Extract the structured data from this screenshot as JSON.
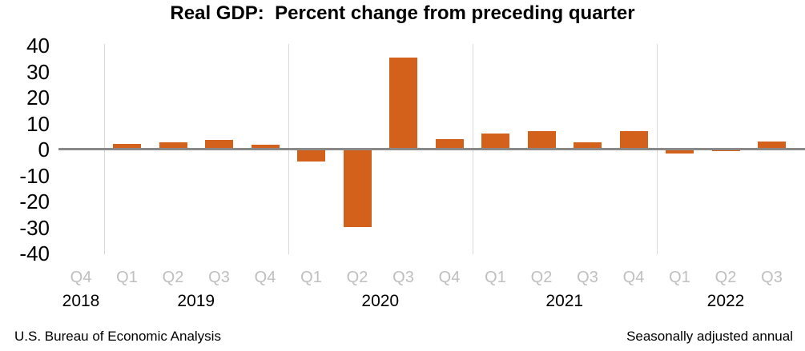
{
  "title": "Real GDP:  Percent change from preceding quarter",
  "footer": {
    "left": "U.S. Bureau of Economic Analysis",
    "right": "Seasonally adjusted annual"
  },
  "colors": {
    "bar": "#D3611B",
    "zero_axis": "#898989",
    "year_gridline": "#D9D9D9",
    "quarter_label": "#BFBFBF",
    "text": "#000000",
    "background": "#FFFFFF"
  },
  "chart_data": {
    "type": "bar",
    "title": "Real GDP:  Percent change from preceding quarter",
    "xlabel": "",
    "ylabel": "",
    "units": "percent change at seasonally adjusted annual rate",
    "ylim": [
      -40,
      40
    ],
    "y_ticks": [
      40,
      30,
      20,
      10,
      0,
      -10,
      -20,
      -30,
      -40
    ],
    "grid": "vertical-year-separators-only",
    "legend_position": "none",
    "year_separators_after_index": [
      0,
      4,
      8,
      12
    ],
    "points": [
      {
        "year": "2018",
        "quarter": "Q4",
        "value": 0.7
      },
      {
        "year": "2019",
        "quarter": "Q1",
        "value": 2.2
      },
      {
        "year": "2019",
        "quarter": "Q2",
        "value": 2.7
      },
      {
        "year": "2019",
        "quarter": "Q3",
        "value": 3.6
      },
      {
        "year": "2019",
        "quarter": "Q4",
        "value": 1.8
      },
      {
        "year": "2020",
        "quarter": "Q1",
        "value": -4.6
      },
      {
        "year": "2020",
        "quarter": "Q2",
        "value": -29.9
      },
      {
        "year": "2020",
        "quarter": "Q3",
        "value": 35.3
      },
      {
        "year": "2020",
        "quarter": "Q4",
        "value": 3.9
      },
      {
        "year": "2021",
        "quarter": "Q1",
        "value": 6.3
      },
      {
        "year": "2021",
        "quarter": "Q2",
        "value": 7.0
      },
      {
        "year": "2021",
        "quarter": "Q3",
        "value": 2.7
      },
      {
        "year": "2021",
        "quarter": "Q4",
        "value": 7.0
      },
      {
        "year": "2022",
        "quarter": "Q1",
        "value": -1.6
      },
      {
        "year": "2022",
        "quarter": "Q2",
        "value": -0.6
      },
      {
        "year": "2022",
        "quarter": "Q3",
        "value": 3.2
      }
    ]
  }
}
